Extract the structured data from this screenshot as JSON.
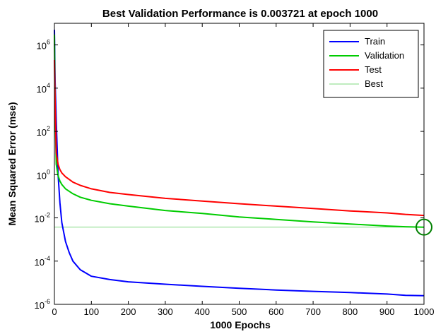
{
  "chart_data": {
    "type": "line",
    "title": "Best Validation Performance is 0.003721 at epoch 1000",
    "xlabel": "1000 Epochs",
    "ylabel": "Mean Squared Error  (mse)",
    "xlim": [
      0,
      1000
    ],
    "ylim": [
      1e-06,
      10000000.0
    ],
    "yscale": "log",
    "x_ticks": [
      "0",
      "100",
      "200",
      "300",
      "400",
      "500",
      "600",
      "700",
      "800",
      "900",
      "1000"
    ],
    "y_ticks": [
      {
        "base": "10",
        "exp": "-6",
        "value": 1e-06
      },
      {
        "base": "10",
        "exp": "-4",
        "value": 0.0001
      },
      {
        "base": "10",
        "exp": "-2",
        "value": 0.01
      },
      {
        "base": "10",
        "exp": "0",
        "value": 1
      },
      {
        "base": "10",
        "exp": "2",
        "value": 100
      },
      {
        "base": "10",
        "exp": "4",
        "value": 10000
      },
      {
        "base": "10",
        "exp": "6",
        "value": 1000000
      }
    ],
    "legend_position": "top-right",
    "grid": false,
    "best": {
      "epoch": 1000,
      "value": 0.003721
    },
    "series": [
      {
        "name": "Train",
        "color": "#0000ff",
        "x": [
          0,
          2,
          5,
          10,
          15,
          20,
          30,
          40,
          50,
          70,
          100,
          150,
          200,
          300,
          400,
          500,
          600,
          700,
          800,
          900,
          950,
          1000
        ],
        "y": [
          5000000,
          20000,
          300,
          1.0,
          0.05,
          0.006,
          0.0008,
          0.00025,
          0.0001,
          4e-05,
          2e-05,
          1.4e-05,
          1.1e-05,
          8.5e-06,
          6.8e-06,
          5.5e-06,
          4.6e-06,
          4e-06,
          3.5e-06,
          3e-06,
          2.6e-06,
          2.5e-06
        ]
      },
      {
        "name": "Validation",
        "color": "#00cc00",
        "x": [
          0,
          2,
          5,
          10,
          15,
          20,
          30,
          50,
          70,
          100,
          150,
          200,
          300,
          400,
          500,
          600,
          700,
          800,
          900,
          950,
          1000
        ],
        "y": [
          3000000,
          1000,
          3.0,
          0.9,
          0.5,
          0.35,
          0.22,
          0.13,
          0.09,
          0.065,
          0.045,
          0.035,
          0.022,
          0.016,
          0.011,
          0.0085,
          0.0065,
          0.0052,
          0.0042,
          0.0039,
          0.003721
        ]
      },
      {
        "name": "Test",
        "color": "#ff0000",
        "x": [
          0,
          2,
          5,
          10,
          15,
          20,
          30,
          50,
          70,
          100,
          150,
          200,
          300,
          400,
          500,
          600,
          700,
          800,
          900,
          950,
          1000
        ],
        "y": [
          200000,
          2000,
          10,
          3.0,
          1.7,
          1.2,
          0.8,
          0.45,
          0.32,
          0.22,
          0.15,
          0.12,
          0.08,
          0.06,
          0.045,
          0.035,
          0.027,
          0.021,
          0.017,
          0.0145,
          0.013
        ]
      },
      {
        "name": "Best",
        "color": "#7fd87f"
      }
    ]
  }
}
